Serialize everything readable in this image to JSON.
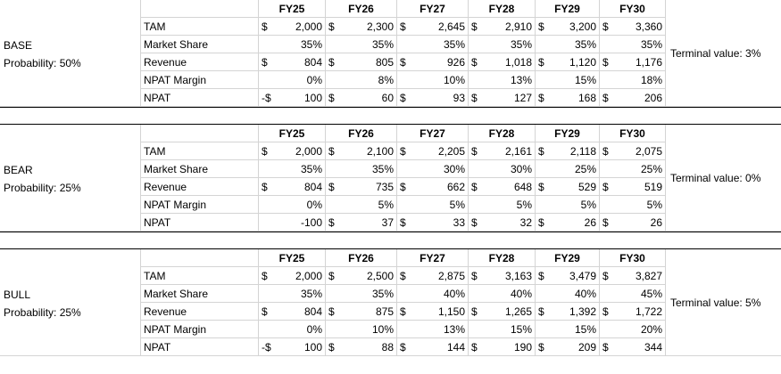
{
  "years": [
    "FY25",
    "FY26",
    "FY27",
    "FY28",
    "FY29",
    "FY30"
  ],
  "scenarios": [
    {
      "name": "BASE",
      "probability": "Probability: 50%",
      "terminal": "Terminal value: 3%",
      "rows": [
        {
          "label": "TAM",
          "cells": [
            [
              "$",
              "2,000"
            ],
            [
              "$",
              "2,300"
            ],
            [
              "$",
              "2,645"
            ],
            [
              "$",
              "2,910"
            ],
            [
              "$",
              "3,200"
            ],
            [
              "$",
              "3,360"
            ]
          ]
        },
        {
          "label": "Market Share",
          "cells": [
            [
              "",
              "35%"
            ],
            [
              "",
              "35%"
            ],
            [
              "",
              "35%"
            ],
            [
              "",
              "35%"
            ],
            [
              "",
              "35%"
            ],
            [
              "",
              "35%"
            ]
          ]
        },
        {
          "label": "Revenue",
          "cells": [
            [
              "$",
              "804"
            ],
            [
              "$",
              "805"
            ],
            [
              "$",
              "926"
            ],
            [
              "$",
              "1,018"
            ],
            [
              "$",
              "1,120"
            ],
            [
              "$",
              "1,176"
            ]
          ]
        },
        {
          "label": "NPAT Margin",
          "cells": [
            [
              "",
              "0%"
            ],
            [
              "",
              "8%"
            ],
            [
              "",
              "10%"
            ],
            [
              "",
              "13%"
            ],
            [
              "",
              "15%"
            ],
            [
              "",
              "18%"
            ]
          ]
        },
        {
          "label": "NPAT",
          "cells": [
            [
              "-$",
              "100"
            ],
            [
              "$",
              "60"
            ],
            [
              "$",
              "93"
            ],
            [
              "$",
              "127"
            ],
            [
              "$",
              "168"
            ],
            [
              "$",
              "206"
            ]
          ]
        }
      ]
    },
    {
      "name": "BEAR",
      "probability": "Probability: 25%",
      "terminal": "Terminal value: 0%",
      "rows": [
        {
          "label": "TAM",
          "cells": [
            [
              "$",
              "2,000"
            ],
            [
              "$",
              "2,100"
            ],
            [
              "$",
              "2,205"
            ],
            [
              "$",
              "2,161"
            ],
            [
              "$",
              "2,118"
            ],
            [
              "$",
              "2,075"
            ]
          ]
        },
        {
          "label": "Market Share",
          "cells": [
            [
              "",
              "35%"
            ],
            [
              "",
              "35%"
            ],
            [
              "",
              "30%"
            ],
            [
              "",
              "30%"
            ],
            [
              "",
              "25%"
            ],
            [
              "",
              "25%"
            ]
          ]
        },
        {
          "label": "Revenue",
          "cells": [
            [
              "$",
              "804"
            ],
            [
              "$",
              "735"
            ],
            [
              "$",
              "662"
            ],
            [
              "$",
              "648"
            ],
            [
              "$",
              "529"
            ],
            [
              "$",
              "519"
            ]
          ]
        },
        {
          "label": "NPAT Margin",
          "cells": [
            [
              "",
              "0%"
            ],
            [
              "",
              "5%"
            ],
            [
              "",
              "5%"
            ],
            [
              "",
              "5%"
            ],
            [
              "",
              "5%"
            ],
            [
              "",
              "5%"
            ]
          ]
        },
        {
          "label": "NPAT",
          "cells": [
            [
              "",
              "-100"
            ],
            [
              "$",
              "37"
            ],
            [
              "$",
              "33"
            ],
            [
              "$",
              "32"
            ],
            [
              "$",
              "26"
            ],
            [
              "$",
              "26"
            ]
          ]
        }
      ]
    },
    {
      "name": "BULL",
      "probability": "Probability: 25%",
      "terminal": "Terminal value: 5%",
      "rows": [
        {
          "label": "TAM",
          "cells": [
            [
              "$",
              "2,000"
            ],
            [
              "$",
              "2,500"
            ],
            [
              "$",
              "2,875"
            ],
            [
              "$",
              "3,163"
            ],
            [
              "$",
              "3,479"
            ],
            [
              "$",
              "3,827"
            ]
          ]
        },
        {
          "label": "Market Share",
          "cells": [
            [
              "",
              "35%"
            ],
            [
              "",
              "35%"
            ],
            [
              "",
              "40%"
            ],
            [
              "",
              "40%"
            ],
            [
              "",
              "40%"
            ],
            [
              "",
              "45%"
            ]
          ]
        },
        {
          "label": "Revenue",
          "cells": [
            [
              "$",
              "804"
            ],
            [
              "$",
              "875"
            ],
            [
              "$",
              "1,150"
            ],
            [
              "$",
              "1,265"
            ],
            [
              "$",
              "1,392"
            ],
            [
              "$",
              "1,722"
            ]
          ]
        },
        {
          "label": "NPAT Margin",
          "cells": [
            [
              "",
              "0%"
            ],
            [
              "",
              "10%"
            ],
            [
              "",
              "13%"
            ],
            [
              "",
              "15%"
            ],
            [
              "",
              "15%"
            ],
            [
              "",
              "20%"
            ]
          ]
        },
        {
          "label": "NPAT",
          "cells": [
            [
              "-$",
              "100"
            ],
            [
              "$",
              "88"
            ],
            [
              "$",
              "144"
            ],
            [
              "$",
              "190"
            ],
            [
              "$",
              "209"
            ],
            [
              "$",
              "344"
            ]
          ]
        }
      ]
    }
  ]
}
